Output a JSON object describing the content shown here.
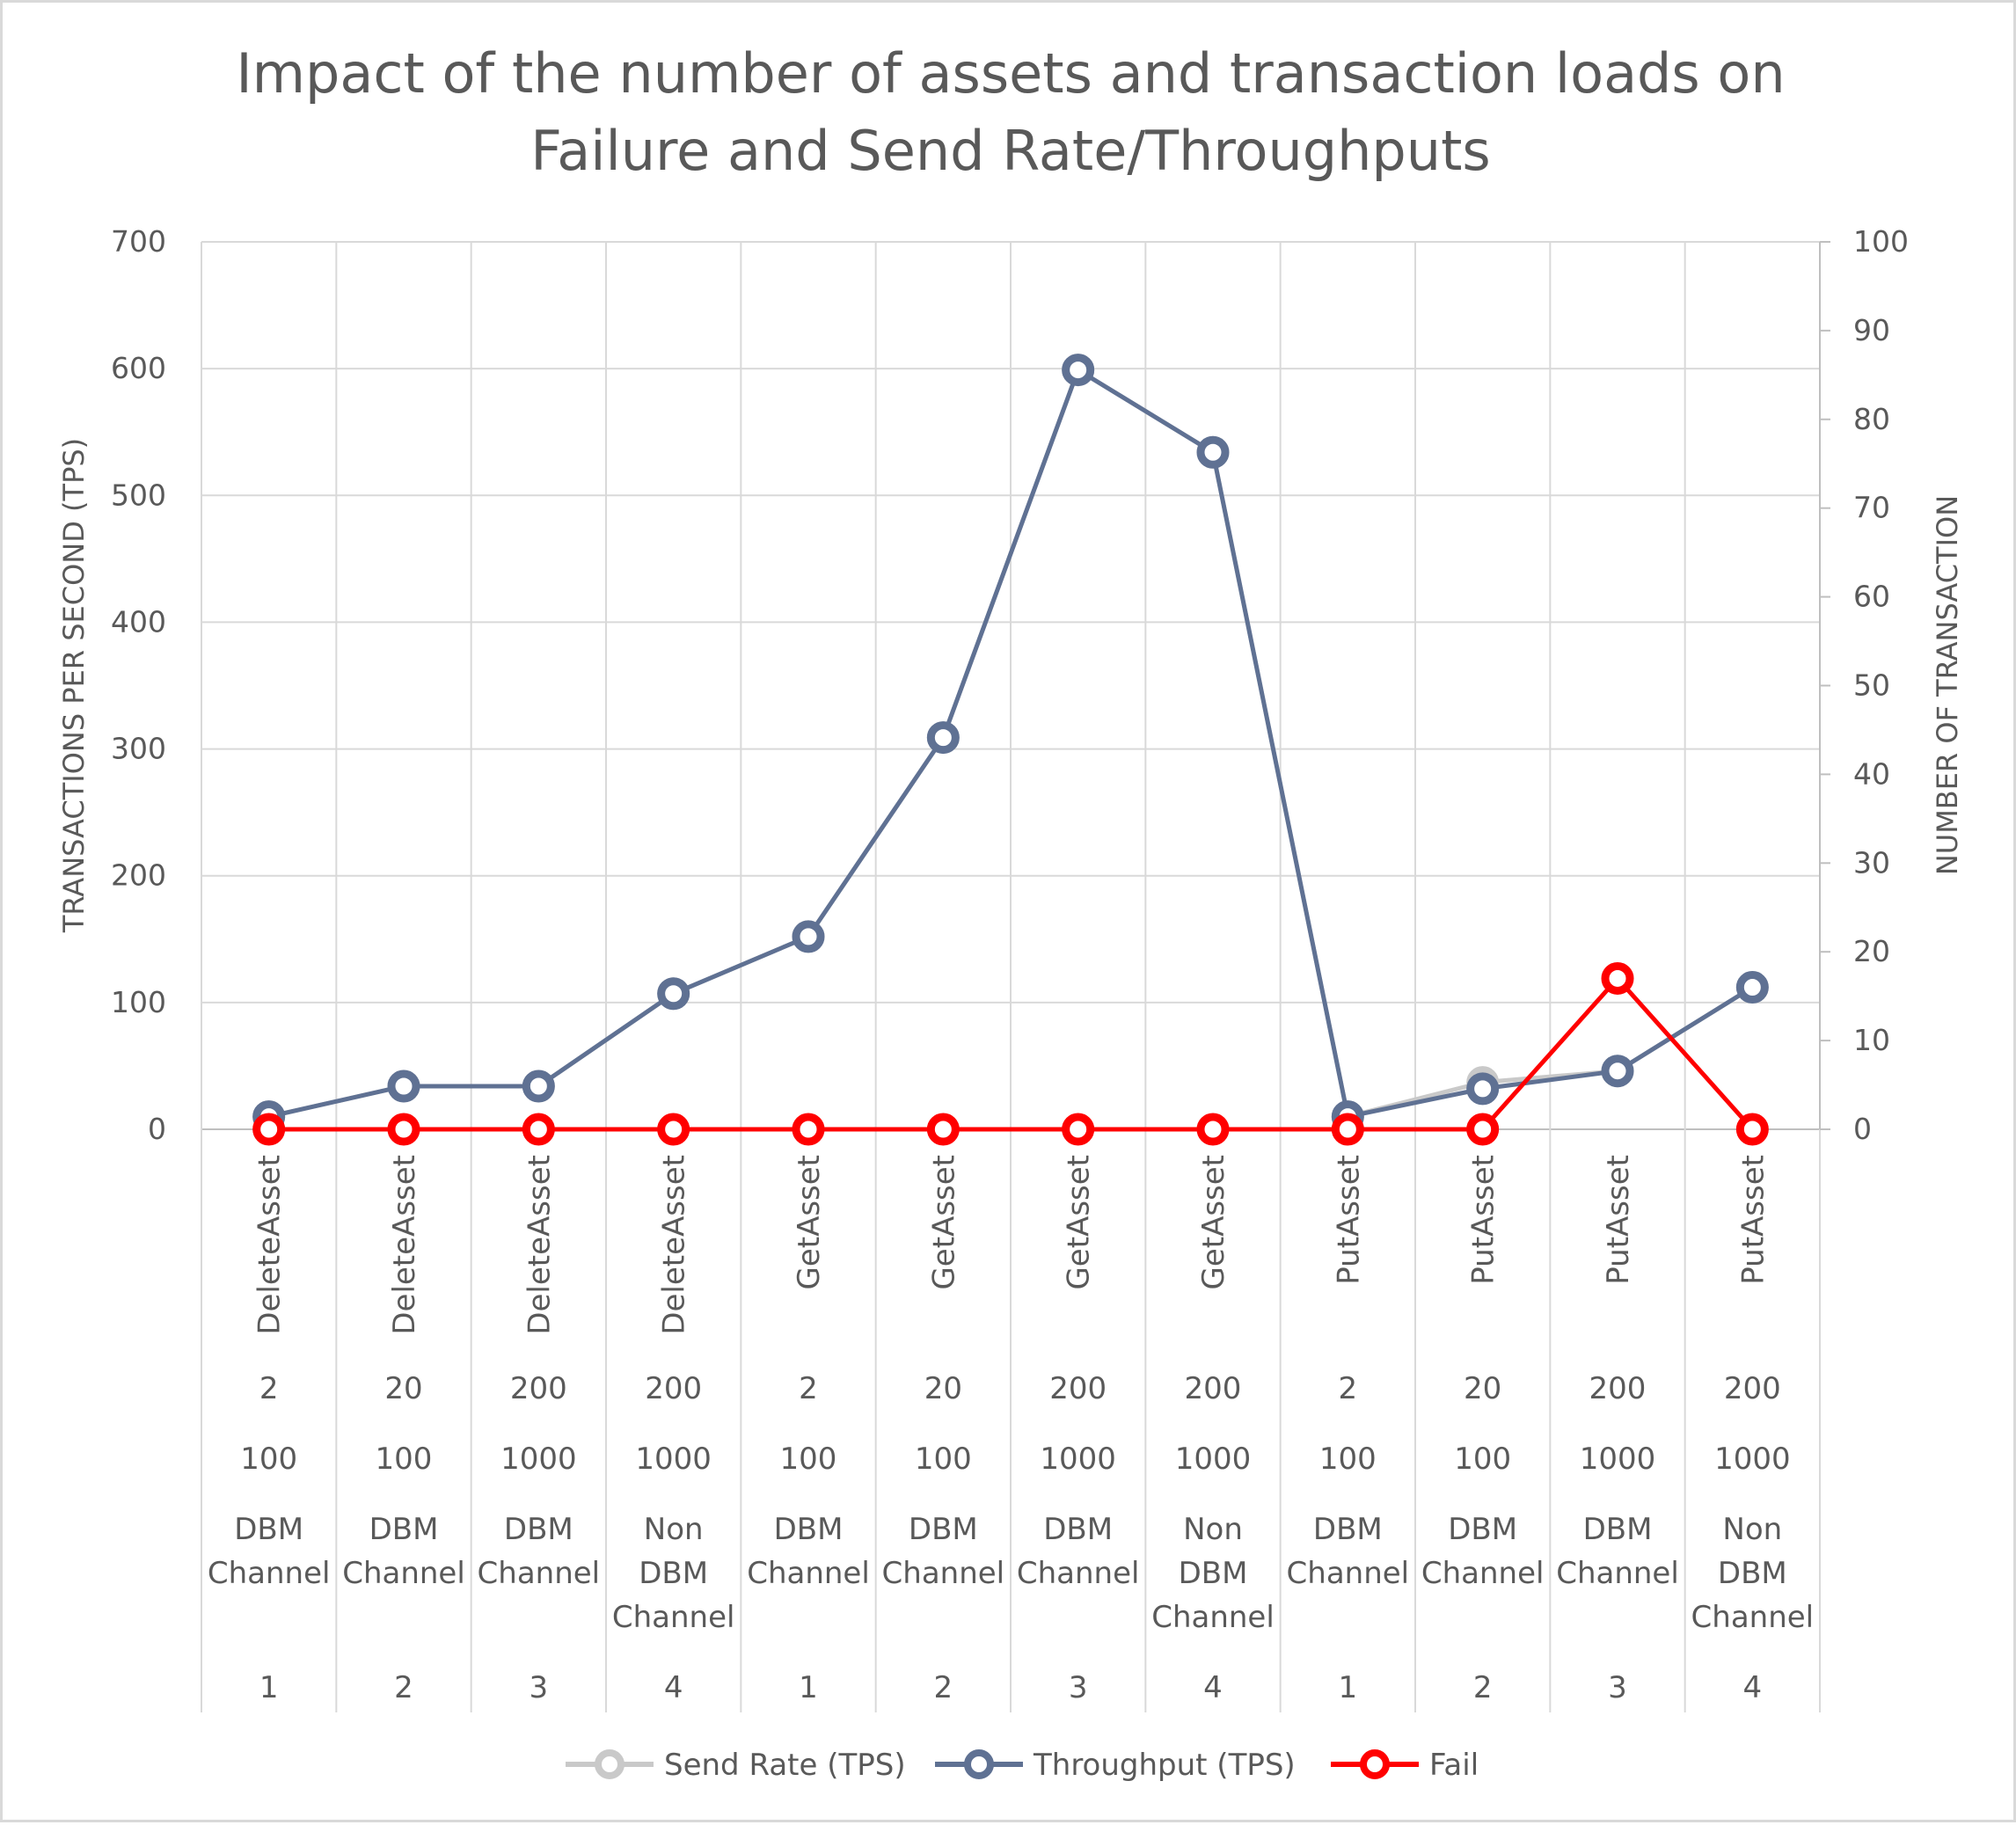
{
  "chart_data": {
    "type": "line",
    "title": "Impact of the number of assets and transaction loads on Failure and Send Rate/Throughputs",
    "title_lines": [
      "Impact of the number of assets and transaction loads on",
      "Failure and Send Rate/Throughputs"
    ],
    "ylabel": "TRANSACTIONS PER SECOND (TPS)",
    "y2label": "NUMBER OF TRANSACTION",
    "ylim": [
      0,
      700
    ],
    "y_ticks": [
      "0",
      "100",
      "200",
      "300",
      "400",
      "500",
      "600",
      "700"
    ],
    "y2lim": [
      0,
      100
    ],
    "y2_ticks": [
      "0",
      "10",
      "20",
      "30",
      "40",
      "50",
      "60",
      "70",
      "80",
      "90",
      "100"
    ],
    "grid": true,
    "legend_position": "bottom",
    "category_levels": {
      "operation": [
        "DeleteAsset",
        "DeleteAsset",
        "DeleteAsset",
        "DeleteAsset",
        "GetAsset",
        "GetAsset",
        "GetAsset",
        "GetAsset",
        "PutAsset",
        "PutAsset",
        "PutAsset",
        "PutAsset"
      ],
      "assets": [
        "2",
        "20",
        "200",
        "200",
        "2",
        "20",
        "200",
        "200",
        "2",
        "20",
        "200",
        "200"
      ],
      "load": [
        "100",
        "100",
        "1000",
        "1000",
        "100",
        "100",
        "1000",
        "1000",
        "100",
        "100",
        "1000",
        "1000"
      ],
      "channel": [
        [
          "DBM",
          "Channel"
        ],
        [
          "DBM",
          "Channel"
        ],
        [
          "DBM",
          "Channel"
        ],
        [
          "Non",
          "DBM",
          "Channel"
        ],
        [
          "DBM",
          "Channel"
        ],
        [
          "DBM",
          "Channel"
        ],
        [
          "DBM",
          "Channel"
        ],
        [
          "Non",
          "DBM",
          "Channel"
        ],
        [
          "DBM",
          "Channel"
        ],
        [
          "DBM",
          "Channel"
        ],
        [
          "DBM",
          "Channel"
        ],
        [
          "Non",
          "DBM",
          "Channel"
        ]
      ],
      "case": [
        "1",
        "2",
        "3",
        "4",
        "1",
        "2",
        "3",
        "4",
        "1",
        "2",
        "3",
        "4"
      ]
    },
    "series": [
      {
        "name": "Send Rate (TPS)",
        "axis": "left",
        "color": "#c9c9c9",
        "values": [
          10,
          34,
          34,
          107,
          152,
          309,
          599,
          534,
          10,
          37,
          46,
          112
        ]
      },
      {
        "name": "Throughput (TPS)",
        "axis": "left",
        "color": "#5f7193",
        "values": [
          10,
          34,
          34,
          107,
          152,
          309,
          599,
          534,
          10,
          32,
          46,
          112
        ]
      },
      {
        "name": "Fail",
        "axis": "right",
        "color": "#ff0000",
        "values": [
          0,
          0,
          0,
          0,
          0,
          0,
          0,
          0,
          0,
          0,
          17,
          0
        ]
      }
    ]
  }
}
